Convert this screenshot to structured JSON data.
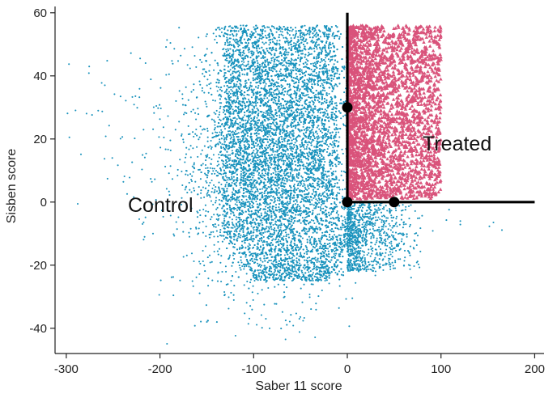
{
  "chart_data": {
    "type": "scatter",
    "xlabel": "Saber 11 score",
    "ylabel": "Sisben score",
    "xlim": [
      -312,
      210
    ],
    "ylim": [
      -48,
      62
    ],
    "xticks": [
      -300,
      -200,
      -100,
      0,
      100,
      200
    ],
    "yticks": [
      -40,
      -20,
      0,
      20,
      40,
      60
    ],
    "grid": false,
    "series": [
      {
        "name": "Control",
        "marker": "circle",
        "color": "#1a93bd",
        "x_range": [
          -312,
          180
        ],
        "y_range": [
          -45,
          56
        ],
        "approx_center": [
          -85,
          15
        ]
      },
      {
        "name": "Treated",
        "marker": "triangle",
        "color": "#d9537b",
        "x_range": [
          0,
          100
        ],
        "y_range": [
          0,
          56
        ]
      }
    ],
    "boundary_lines": [
      {
        "x": [
          0,
          0
        ],
        "y": [
          0,
          60
        ]
      },
      {
        "x": [
          0,
          200
        ],
        "y": [
          0,
          0
        ]
      }
    ],
    "highlight_points": [
      {
        "x": 0,
        "y": 30
      },
      {
        "x": 0,
        "y": 0
      },
      {
        "x": 50,
        "y": 0
      }
    ],
    "annotations": [
      {
        "text": "Control",
        "x": -240,
        "y": 0
      },
      {
        "text": "Treated",
        "x": 80,
        "y": 20
      }
    ]
  }
}
